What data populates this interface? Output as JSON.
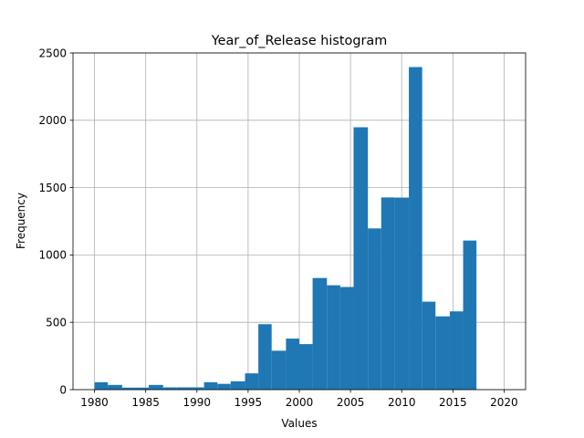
{
  "chart_data": {
    "type": "bar",
    "title": "Year_of_Release histogram",
    "xlabel": "Values",
    "ylabel": "Frequency",
    "xlim": [
      1977.9,
      2022.1
    ],
    "ylim": [
      0,
      2500
    ],
    "xticks": [
      "1980",
      "1985",
      "1990",
      "1995",
      "2000",
      "2005",
      "2010",
      "2015",
      "2020"
    ],
    "yticks": [
      "0",
      "500",
      "1000",
      "1500",
      "2000",
      "2500"
    ],
    "grid": true,
    "bar_color": "#1f77b4",
    "bins": [
      {
        "x0": 1980.0,
        "x1": 1981.3,
        "value": 55
      },
      {
        "x0": 1981.3,
        "x1": 1982.7,
        "value": 35
      },
      {
        "x0": 1982.7,
        "x1": 1984.0,
        "value": 15
      },
      {
        "x0": 1984.0,
        "x1": 1985.3,
        "value": 15
      },
      {
        "x0": 1985.3,
        "x1": 1986.7,
        "value": 35
      },
      {
        "x0": 1986.7,
        "x1": 1988.0,
        "value": 17
      },
      {
        "x0": 1988.0,
        "x1": 1989.3,
        "value": 17
      },
      {
        "x0": 1989.3,
        "x1": 1990.7,
        "value": 17
      },
      {
        "x0": 1990.7,
        "x1": 1992.0,
        "value": 55
      },
      {
        "x0": 1992.0,
        "x1": 1993.3,
        "value": 43
      },
      {
        "x0": 1993.3,
        "x1": 1994.7,
        "value": 62
      },
      {
        "x0": 1994.7,
        "x1": 1996.0,
        "value": 121
      },
      {
        "x0": 1996.0,
        "x1": 1997.3,
        "value": 486
      },
      {
        "x0": 1997.3,
        "x1": 1998.7,
        "value": 289
      },
      {
        "x0": 1998.7,
        "x1": 2000.0,
        "value": 379
      },
      {
        "x0": 2000.0,
        "x1": 2001.3,
        "value": 338
      },
      {
        "x0": 2001.3,
        "x1": 2002.7,
        "value": 829
      },
      {
        "x0": 2002.7,
        "x1": 2004.0,
        "value": 775
      },
      {
        "x0": 2004.0,
        "x1": 2005.3,
        "value": 762
      },
      {
        "x0": 2005.3,
        "x1": 2006.7,
        "value": 1948
      },
      {
        "x0": 2006.7,
        "x1": 2008.0,
        "value": 1197
      },
      {
        "x0": 2008.0,
        "x1": 2009.3,
        "value": 1427
      },
      {
        "x0": 2009.3,
        "x1": 2010.7,
        "value": 1426
      },
      {
        "x0": 2010.7,
        "x1": 2012.0,
        "value": 2395
      },
      {
        "x0": 2012.0,
        "x1": 2013.3,
        "value": 653
      },
      {
        "x0": 2013.3,
        "x1": 2014.7,
        "value": 544
      },
      {
        "x0": 2014.7,
        "x1": 2016.0,
        "value": 581
      },
      {
        "x0": 2016.0,
        "x1": 2017.3,
        "value": 1107
      }
    ]
  }
}
